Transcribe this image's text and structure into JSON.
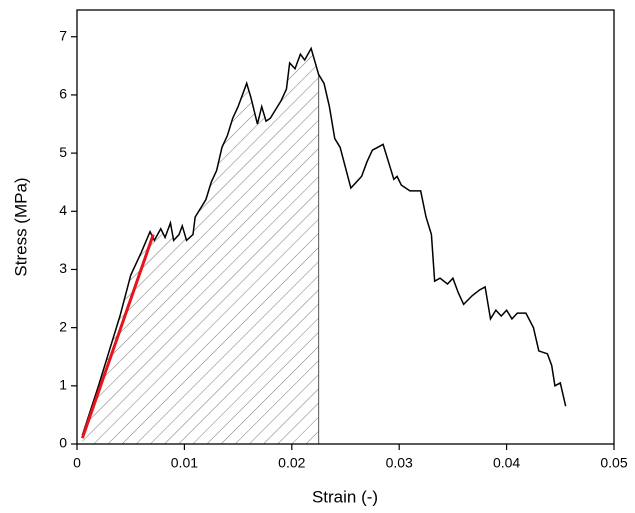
{
  "chart_data": {
    "type": "line",
    "x_label": "Strain (-)",
    "y_label": "Stress (MPa)",
    "xlim": [
      0,
      0.05
    ],
    "ylim": [
      0,
      7.46
    ],
    "xticks": [
      0,
      0.01,
      0.02,
      0.03,
      0.04,
      0.05
    ],
    "yticks": [
      0,
      1,
      2,
      3,
      4,
      5,
      6,
      7
    ],
    "hatch_to": 0.0225,
    "x": [
      0.0005,
      0.002,
      0.004,
      0.005,
      0.006,
      0.0068,
      0.0072,
      0.0078,
      0.0082,
      0.0087,
      0.009,
      0.0095,
      0.0098,
      0.0102,
      0.0108,
      0.011,
      0.0115,
      0.012,
      0.0125,
      0.013,
      0.0135,
      0.014,
      0.0145,
      0.015,
      0.0158,
      0.0162,
      0.0168,
      0.0172,
      0.0176,
      0.018,
      0.0185,
      0.019,
      0.0195,
      0.0198,
      0.0203,
      0.0208,
      0.0212,
      0.0218,
      0.0225,
      0.023,
      0.0235,
      0.024,
      0.0245,
      0.025,
      0.0255,
      0.026,
      0.0265,
      0.027,
      0.0275,
      0.028,
      0.0285,
      0.029,
      0.0295,
      0.0298,
      0.0302,
      0.031,
      0.032,
      0.0325,
      0.033,
      0.0333,
      0.0338,
      0.0345,
      0.035,
      0.0355,
      0.036,
      0.0368,
      0.0375,
      0.038,
      0.0385,
      0.039,
      0.0395,
      0.04,
      0.0405,
      0.041,
      0.0418,
      0.0425,
      0.043,
      0.0438,
      0.0442,
      0.0445,
      0.045,
      0.0455
    ],
    "series": [
      {
        "color": "#000000",
        "values": [
          0.15,
          1.0,
          2.2,
          2.9,
          3.3,
          3.65,
          3.5,
          3.7,
          3.55,
          3.8,
          3.5,
          3.6,
          3.75,
          3.5,
          3.6,
          3.9,
          4.05,
          4.2,
          4.5,
          4.7,
          5.1,
          5.3,
          5.6,
          5.8,
          6.2,
          5.95,
          5.5,
          5.8,
          5.55,
          5.6,
          5.75,
          5.9,
          6.1,
          6.55,
          6.45,
          6.7,
          6.6,
          6.8,
          6.35,
          6.2,
          5.8,
          5.25,
          5.1,
          4.75,
          4.4,
          4.5,
          4.6,
          4.85,
          5.05,
          5.1,
          5.15,
          4.85,
          4.55,
          4.6,
          4.45,
          4.35,
          4.35,
          3.9,
          3.6,
          2.8,
          2.85,
          2.75,
          2.85,
          2.6,
          2.4,
          2.55,
          2.65,
          2.7,
          2.15,
          2.3,
          2.2,
          2.3,
          2.15,
          2.25,
          2.25,
          2.0,
          1.6,
          1.55,
          1.35,
          1.0,
          1.05,
          0.65
        ]
      }
    ],
    "fit_line": {
      "color": "#e8141b",
      "x": [
        0.0005,
        0.0071
      ],
      "values": [
        0.1,
        3.6
      ]
    }
  }
}
